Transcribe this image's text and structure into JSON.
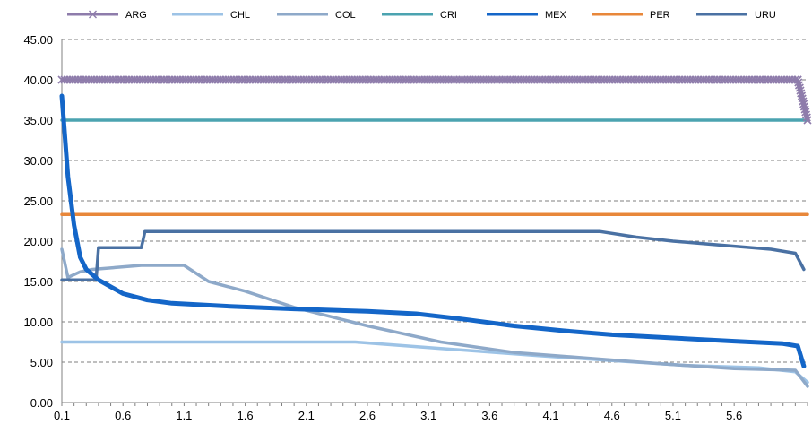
{
  "chart_data": {
    "type": "line",
    "ylim": [
      0,
      45
    ],
    "y_ticks": [
      "0.00",
      "5.00",
      "10.00",
      "15.00",
      "20.00",
      "25.00",
      "30.00",
      "35.00",
      "40.00",
      "45.00"
    ],
    "x_range": [
      0.1,
      6.2
    ],
    "x_ticks": [
      "0.1",
      "0.6",
      "1.1",
      "1.6",
      "2.1",
      "2.6",
      "3.1",
      "3.6",
      "4.1",
      "4.6",
      "5.1",
      "5.6"
    ],
    "grid": "horizontal-dashed",
    "legend_position": "top",
    "series": [
      {
        "name": "ARG",
        "color": "#8e7cab",
        "marker": "x",
        "points": [
          [
            0.1,
            40
          ],
          [
            6.12,
            40
          ],
          [
            6.2,
            35
          ]
        ]
      },
      {
        "name": "CHL",
        "color": "#9dc3e6",
        "points": [
          [
            0.1,
            7.5
          ],
          [
            2.5,
            7.5
          ],
          [
            3.2,
            6.7
          ],
          [
            4.0,
            5.8
          ],
          [
            4.6,
            5.2
          ],
          [
            5.2,
            4.6
          ],
          [
            5.8,
            4.3
          ],
          [
            6.1,
            3.8
          ],
          [
            6.2,
            2.5
          ]
        ]
      },
      {
        "name": "COL",
        "color": "#8ea9c9",
        "points": [
          [
            0.1,
            19
          ],
          [
            0.15,
            15.5
          ],
          [
            0.25,
            16.2
          ],
          [
            0.35,
            16.5
          ],
          [
            0.75,
            17
          ],
          [
            1.1,
            17
          ],
          [
            1.3,
            15
          ],
          [
            1.6,
            13.8
          ],
          [
            2.0,
            11.8
          ],
          [
            2.6,
            9.5
          ],
          [
            3.2,
            7.5
          ],
          [
            3.8,
            6.2
          ],
          [
            4.4,
            5.5
          ],
          [
            5.0,
            4.8
          ],
          [
            5.6,
            4.2
          ],
          [
            6.1,
            4.0
          ],
          [
            6.2,
            2.0
          ]
        ]
      },
      {
        "name": "CRI",
        "color": "#4ba3b0",
        "points": [
          [
            0.1,
            35
          ],
          [
            6.2,
            35
          ]
        ]
      },
      {
        "name": "MEX",
        "color": "#1466c8",
        "points": [
          [
            0.1,
            38
          ],
          [
            0.15,
            28
          ],
          [
            0.2,
            22
          ],
          [
            0.25,
            18
          ],
          [
            0.3,
            16.5
          ],
          [
            0.4,
            15.2
          ],
          [
            0.6,
            13.5
          ],
          [
            0.8,
            12.7
          ],
          [
            1.0,
            12.3
          ],
          [
            1.5,
            11.9
          ],
          [
            2.0,
            11.6
          ],
          [
            2.6,
            11.3
          ],
          [
            3.0,
            11.0
          ],
          [
            3.4,
            10.3
          ],
          [
            3.8,
            9.5
          ],
          [
            4.2,
            8.9
          ],
          [
            4.6,
            8.4
          ],
          [
            5.1,
            8.0
          ],
          [
            5.6,
            7.6
          ],
          [
            6.0,
            7.3
          ],
          [
            6.12,
            7.0
          ],
          [
            6.17,
            4.5
          ]
        ]
      },
      {
        "name": "PER",
        "color": "#e8873a",
        "points": [
          [
            0.1,
            23.3
          ],
          [
            6.2,
            23.3
          ]
        ]
      },
      {
        "name": "URU",
        "color": "#4a71a3",
        "points": [
          [
            0.1,
            15.2
          ],
          [
            0.38,
            15.2
          ],
          [
            0.4,
            19.2
          ],
          [
            0.75,
            19.2
          ],
          [
            0.78,
            21.2
          ],
          [
            4.5,
            21.2
          ],
          [
            4.8,
            20.5
          ],
          [
            5.1,
            20.0
          ],
          [
            5.5,
            19.5
          ],
          [
            5.9,
            19.0
          ],
          [
            6.1,
            18.5
          ],
          [
            6.17,
            16.5
          ]
        ]
      }
    ]
  }
}
